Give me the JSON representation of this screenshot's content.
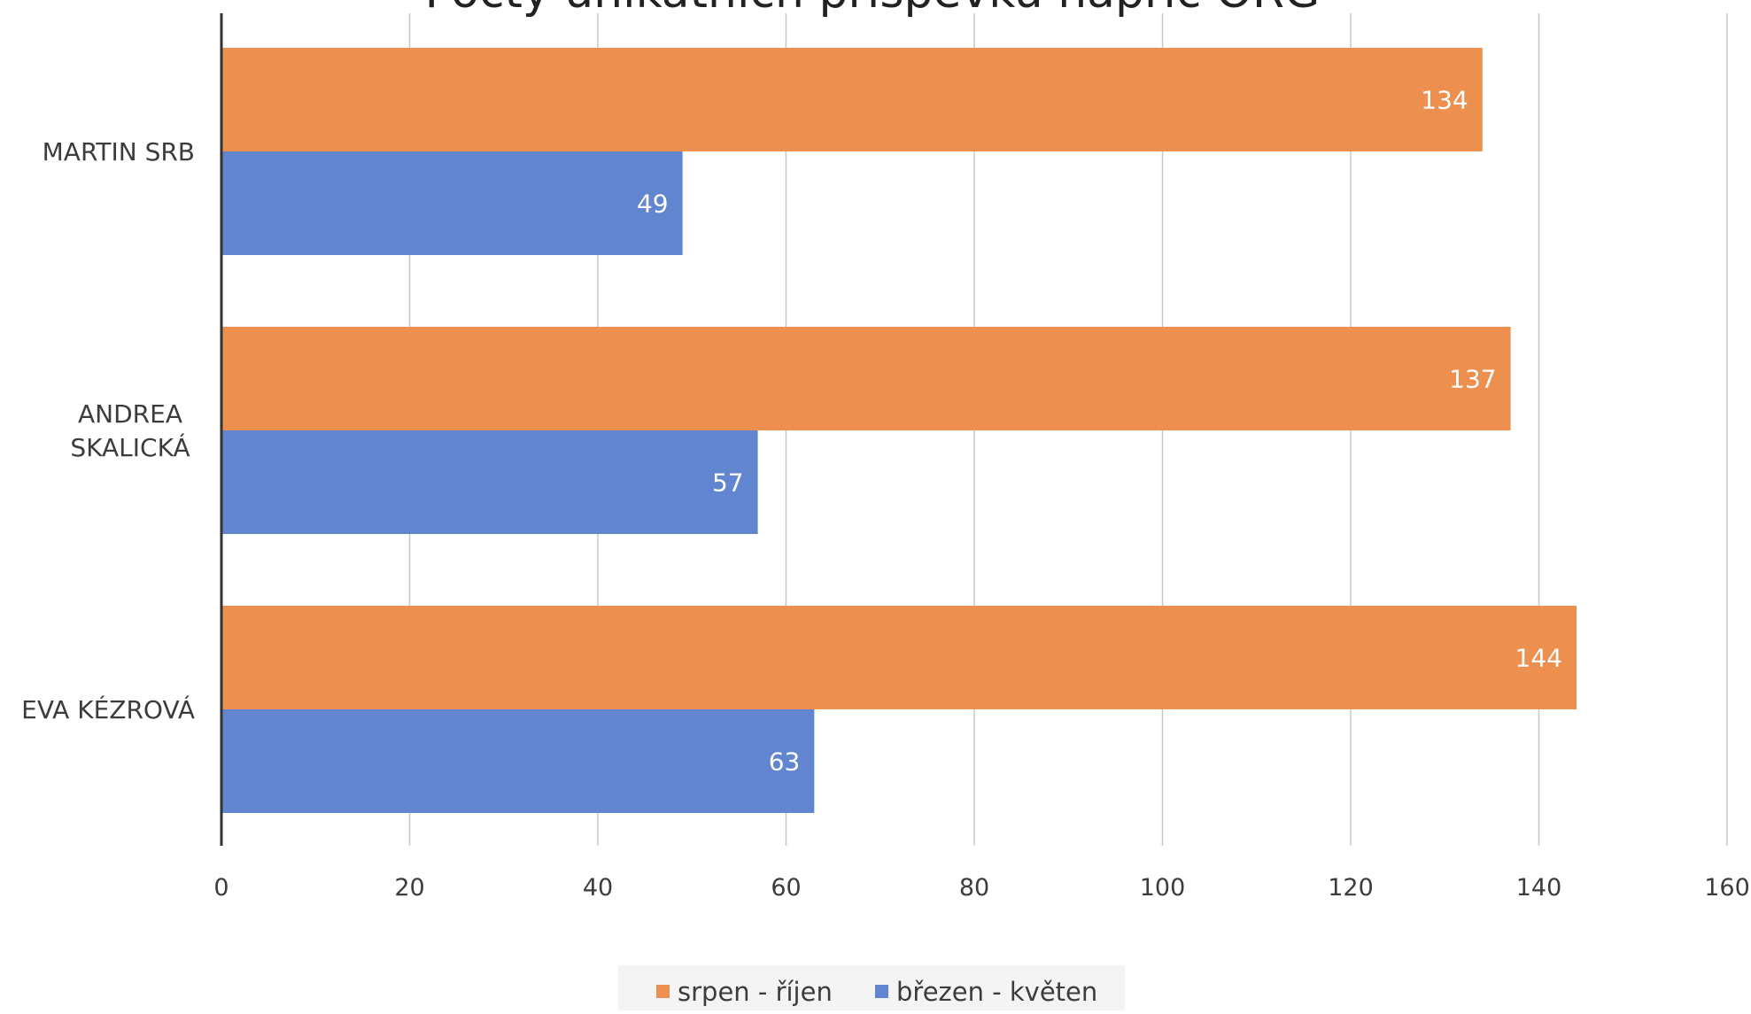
{
  "chart_data": {
    "type": "bar",
    "orientation": "horizontal",
    "title": "Počty unikátních příspěvků napříč ORG",
    "categories": [
      "MARTIN SRB",
      "ANDREA SKALICKÁ",
      "EVA KÉZROVÁ"
    ],
    "category_lines": [
      [
        "MARTIN SRB"
      ],
      [
        "ANDREA",
        "SKALICKÁ"
      ],
      [
        "EVA KÉZROVÁ"
      ]
    ],
    "series": [
      {
        "name": "srpen - říjen",
        "values": [
          134,
          137,
          144
        ],
        "color": "#ED904F"
      },
      {
        "name": "březen - květen",
        "values": [
          49,
          57,
          63
        ],
        "color": "#6186CF"
      }
    ],
    "xlim": [
      0,
      160
    ],
    "xticks": [
      0,
      20,
      40,
      60,
      80,
      100,
      120,
      140,
      160
    ],
    "grid": true,
    "legend": "bottom",
    "data_labels": true
  },
  "colors": {
    "axis": "#333333",
    "grid": "#c8c8c8",
    "tick_text": "#3c3c3c",
    "label_text": "#ffffff",
    "title_text": "#222222",
    "legend_bg": "#f4f4f4"
  }
}
